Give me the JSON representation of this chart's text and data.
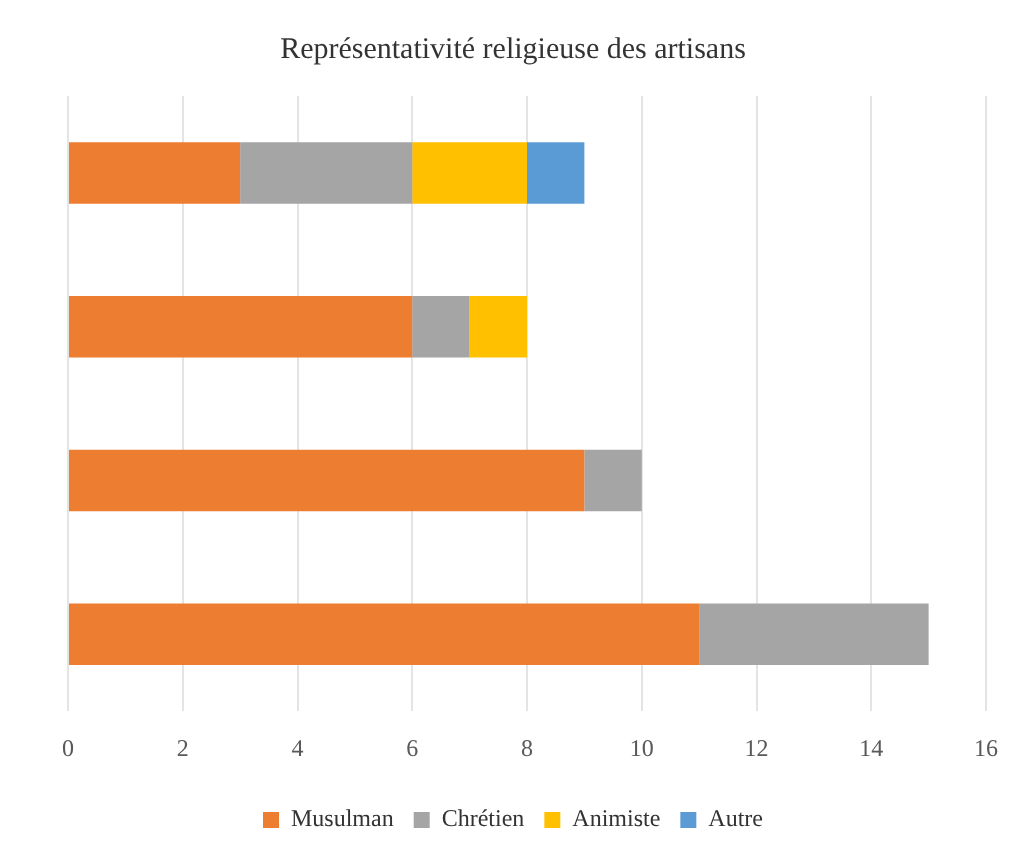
{
  "chart_data": {
    "type": "bar",
    "orientation": "horizontal",
    "stacked": true,
    "title": "Représentativité religieuse des artisans",
    "categories": [
      null,
      null,
      null,
      null
    ],
    "series": [
      {
        "name": "Musulman",
        "color": "#ed7d31",
        "values": [
          3,
          6,
          9,
          11
        ]
      },
      {
        "name": "Chrétien",
        "color": "#a5a5a5",
        "values": [
          3,
          1,
          1,
          4
        ]
      },
      {
        "name": "Animiste",
        "color": "#ffc000",
        "values": [
          2,
          1,
          0,
          0
        ]
      },
      {
        "name": "Autre",
        "color": "#5b9bd5",
        "values": [
          1,
          0,
          0,
          0
        ]
      }
    ],
    "xlim": [
      0,
      16
    ],
    "xticks": [
      0,
      2,
      4,
      6,
      8,
      10,
      12,
      14,
      16
    ],
    "grid": "x",
    "legend": "bottom"
  }
}
